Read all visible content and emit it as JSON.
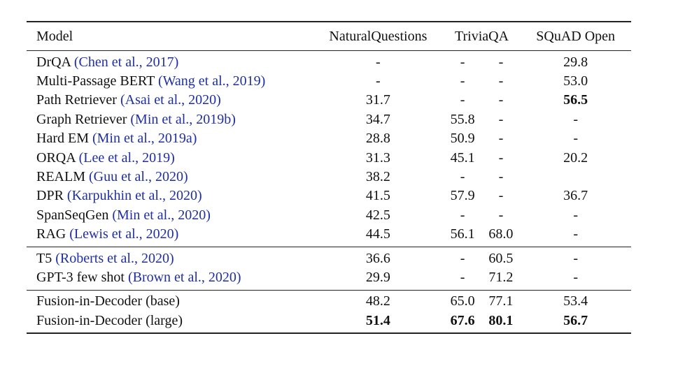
{
  "table": {
    "headers": {
      "model": "Model",
      "nq": "NaturalQuestions",
      "tqa": "TriviaQA",
      "squad": "SQuAD Open"
    },
    "groups": [
      {
        "rows": [
          {
            "name": "DrQA",
            "cite": "(Chen et al., 2017)",
            "nq": "-",
            "tqa1": "-",
            "tqa2": "-",
            "squad": "29.8",
            "bold": []
          },
          {
            "name": "Multi-Passage BERT",
            "cite": "(Wang et al., 2019)",
            "nq": "-",
            "tqa1": "-",
            "tqa2": "-",
            "squad": "53.0",
            "bold": []
          },
          {
            "name": "Path Retriever",
            "cite": "(Asai et al., 2020)",
            "nq": "31.7",
            "tqa1": "-",
            "tqa2": "-",
            "squad": "56.5",
            "bold": [
              "squad"
            ]
          },
          {
            "name": "Graph Retriever",
            "cite": "(Min et al., 2019b)",
            "nq": "34.7",
            "tqa1": "55.8",
            "tqa2": "-",
            "squad": "-",
            "bold": []
          },
          {
            "name": "Hard EM",
            "cite": "(Min et al., 2019a)",
            "nq": "28.8",
            "tqa1": "50.9",
            "tqa2": "-",
            "squad": "-",
            "bold": []
          },
          {
            "name": "ORQA",
            "cite": "(Lee et al., 2019)",
            "nq": "31.3",
            "tqa1": "45.1",
            "tqa2": "-",
            "squad": "20.2",
            "bold": []
          },
          {
            "name": "REALM",
            "cite": "(Guu et al., 2020)",
            "nq": "38.2",
            "tqa1": "-",
            "tqa2": "-",
            "squad": "",
            "bold": []
          },
          {
            "name": "DPR",
            "cite": "(Karpukhin et al., 2020)",
            "nq": "41.5",
            "tqa1": "57.9",
            "tqa2": "-",
            "squad": "36.7",
            "bold": []
          },
          {
            "name": "SpanSeqGen",
            "cite": "(Min et al., 2020)",
            "nq": "42.5",
            "tqa1": "-",
            "tqa2": "-",
            "squad": "-",
            "bold": []
          },
          {
            "name": "RAG",
            "cite": "(Lewis et al., 2020)",
            "nq": "44.5",
            "tqa1": "56.1",
            "tqa2": "68.0",
            "squad": "-",
            "bold": []
          }
        ]
      },
      {
        "rows": [
          {
            "name": "T5",
            "cite": "(Roberts et al., 2020)",
            "nq": "36.6",
            "tqa1": "-",
            "tqa2": "60.5",
            "squad": "-",
            "bold": []
          },
          {
            "name": "GPT-3 few shot",
            "cite": "(Brown et al., 2020)",
            "nq": "29.9",
            "tqa1": "-",
            "tqa2": "71.2",
            "squad": "-",
            "bold": []
          }
        ]
      },
      {
        "rows": [
          {
            "name": "Fusion-in-Decoder (base)",
            "cite": "",
            "nq": "48.2",
            "tqa1": "65.0",
            "tqa2": "77.1",
            "squad": "53.4",
            "bold": []
          },
          {
            "name": "Fusion-in-Decoder (large)",
            "cite": "",
            "nq": "51.4",
            "tqa1": "67.6",
            "tqa2": "80.1",
            "squad": "56.7",
            "bold": [
              "nq",
              "tqa1",
              "tqa2",
              "squad"
            ]
          }
        ]
      }
    ]
  }
}
